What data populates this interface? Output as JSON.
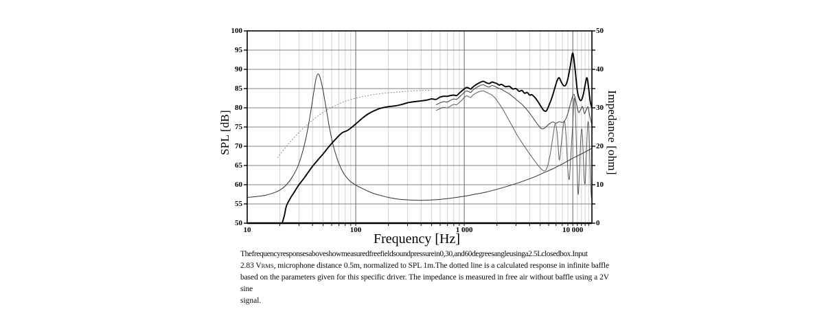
{
  "colors": {
    "background": "#ffffff",
    "axis": "#000000",
    "grid_horizontal": "#808080",
    "grid_decade": "#707070",
    "grid_minor": "#d2d2d2",
    "spl_0deg": "#000000",
    "spl_30deg": "#3a3a3a",
    "spl_60deg": "#5a5a5a",
    "calculated": "#8a8a8a",
    "impedance": "#2f2f2f"
  },
  "chart_data": {
    "type": "line",
    "x_scale": "log",
    "xlabel": "Frequency [Hz]",
    "ylabel_left": "SPL [dB]",
    "ylabel_right": "Impedance [ohm]",
    "x_range": [
      10,
      15000
    ],
    "y_left_range": [
      50,
      100
    ],
    "y_right_range": [
      0,
      50
    ],
    "grid": "on",
    "legend_position": "none",
    "x_tick_labels": [
      {
        "f": 10,
        "label": "10"
      },
      {
        "f": 100,
        "label": "100"
      },
      {
        "f": 1000,
        "label": "1 000"
      },
      {
        "f": 10000,
        "label": "10 000"
      }
    ],
    "y_left_tick_labels": [
      100,
      95,
      90,
      85,
      80,
      75,
      70,
      65,
      60,
      55,
      50
    ],
    "y_right_tick_labels": [
      50,
      40,
      30,
      20,
      10,
      0
    ],
    "series": [
      {
        "name": "calculated-infinite-baffle-response-dotted",
        "axis": "left",
        "style": "calculated",
        "points": [
          [
            19,
            67
          ],
          [
            22,
            69.3
          ],
          [
            25,
            71.2
          ],
          [
            30,
            73.6
          ],
          [
            35,
            75.4
          ],
          [
            40,
            76.8
          ],
          [
            50,
            78.8
          ],
          [
            60,
            80.1
          ],
          [
            70,
            81.0
          ],
          [
            80,
            81.7
          ],
          [
            100,
            82.5
          ],
          [
            120,
            83.0
          ],
          [
            150,
            83.5
          ],
          [
            200,
            83.9
          ],
          [
            250,
            84.1
          ],
          [
            300,
            84.3
          ],
          [
            400,
            84.5
          ],
          [
            500,
            84.6
          ]
        ]
      },
      {
        "name": "spl-30-degrees",
        "axis": "left",
        "style": "spl_30deg",
        "points": [
          [
            550,
            80.8
          ],
          [
            600,
            81.3
          ],
          [
            650,
            81.6
          ],
          [
            700,
            81.5
          ],
          [
            750,
            82.0
          ],
          [
            800,
            82.3
          ],
          [
            850,
            82.2
          ],
          [
            900,
            82.8
          ],
          [
            950,
            83.4
          ],
          [
            1000,
            84.0
          ],
          [
            1050,
            84.4
          ],
          [
            1100,
            84.2
          ],
          [
            1150,
            84.0
          ],
          [
            1200,
            84.6
          ],
          [
            1300,
            85.3
          ],
          [
            1400,
            85.8
          ],
          [
            1500,
            86.0
          ],
          [
            1600,
            85.6
          ],
          [
            1700,
            85.4
          ],
          [
            1800,
            85.8
          ],
          [
            1900,
            85.6
          ],
          [
            2000,
            85.3
          ],
          [
            2200,
            84.8
          ],
          [
            2400,
            84.2
          ],
          [
            2600,
            83.6
          ],
          [
            2800,
            82.9
          ],
          [
            3000,
            82.2
          ],
          [
            3300,
            81.2
          ],
          [
            3600,
            80.2
          ],
          [
            4000,
            78.6
          ],
          [
            4400,
            77.0
          ],
          [
            4800,
            75.5
          ],
          [
            5200,
            74.5
          ],
          [
            5600,
            74.9
          ],
          [
            6000,
            75.7
          ],
          [
            6500,
            76.3
          ],
          [
            7000,
            76.0
          ],
          [
            7500,
            76.4
          ],
          [
            8000,
            76.2
          ],
          [
            8500,
            76.8
          ],
          [
            9000,
            78.5
          ],
          [
            9500,
            81.0
          ],
          [
            10200,
            83.5
          ],
          [
            10800,
            81.0
          ],
          [
            11300,
            78.8
          ],
          [
            11800,
            79.5
          ],
          [
            12300,
            80.3
          ],
          [
            12800,
            78.5
          ],
          [
            13300,
            79.5
          ],
          [
            13800,
            80.2
          ],
          [
            14300,
            78.0
          ],
          [
            14800,
            76.2
          ],
          [
            15000,
            75.7
          ]
        ]
      },
      {
        "name": "spl-60-degrees",
        "axis": "left",
        "style": "spl_60deg",
        "points": [
          [
            550,
            79.3
          ],
          [
            600,
            79.8
          ],
          [
            650,
            80.1
          ],
          [
            700,
            80.0
          ],
          [
            750,
            80.5
          ],
          [
            800,
            80.9
          ],
          [
            850,
            80.8
          ],
          [
            900,
            81.4
          ],
          [
            950,
            82.0
          ],
          [
            1000,
            82.7
          ],
          [
            1050,
            83.1
          ],
          [
            1100,
            82.9
          ],
          [
            1150,
            82.7
          ],
          [
            1200,
            83.3
          ],
          [
            1300,
            83.9
          ],
          [
            1400,
            84.3
          ],
          [
            1500,
            84.4
          ],
          [
            1600,
            84.0
          ],
          [
            1700,
            83.7
          ],
          [
            1800,
            83.3
          ],
          [
            1900,
            82.7
          ],
          [
            2000,
            81.9
          ],
          [
            2200,
            80.2
          ],
          [
            2400,
            78.4
          ],
          [
            2600,
            76.6
          ],
          [
            2800,
            75.0
          ],
          [
            3000,
            73.4
          ],
          [
            3300,
            71.5
          ],
          [
            3600,
            69.9
          ],
          [
            4000,
            68.0
          ],
          [
            4400,
            66.4
          ],
          [
            4800,
            65.0
          ],
          [
            5200,
            63.9
          ],
          [
            5500,
            63.6
          ],
          [
            5800,
            64.5
          ],
          [
            6200,
            68.0
          ],
          [
            6600,
            73.0
          ],
          [
            6900,
            75.8
          ],
          [
            7200,
            73.0
          ],
          [
            7500,
            66.5
          ],
          [
            7800,
            70.0
          ],
          [
            8100,
            74.5
          ],
          [
            8400,
            76.5
          ],
          [
            8700,
            72.0
          ],
          [
            9000,
            64.0
          ],
          [
            9300,
            61.5
          ],
          [
            9600,
            68.0
          ],
          [
            10000,
            76.0
          ],
          [
            10300,
            82.5
          ],
          [
            10600,
            78.0
          ],
          [
            10900,
            66.0
          ],
          [
            11200,
            57.5
          ],
          [
            11500,
            63.0
          ],
          [
            11800,
            71.0
          ],
          [
            12100,
            74.5
          ],
          [
            12400,
            70.0
          ],
          [
            12700,
            62.0
          ],
          [
            13000,
            60.5
          ],
          [
            13300,
            67.0
          ],
          [
            13600,
            74.0
          ],
          [
            13900,
            76.3
          ],
          [
            14200,
            71.0
          ],
          [
            14500,
            62.0
          ],
          [
            14800,
            57.0
          ],
          [
            15000,
            56.5
          ]
        ]
      },
      {
        "name": "impedance-free-air",
        "axis": "right",
        "style": "impedance",
        "points": [
          [
            10,
            6.7
          ],
          [
            12,
            6.9
          ],
          [
            15,
            7.3
          ],
          [
            18,
            8.0
          ],
          [
            20,
            8.6
          ],
          [
            23,
            10.0
          ],
          [
            26,
            12.0
          ],
          [
            29,
            14.5
          ],
          [
            32,
            18.0
          ],
          [
            35,
            22.5
          ],
          [
            38,
            28.0
          ],
          [
            41,
            34.0
          ],
          [
            43,
            37.5
          ],
          [
            45,
            38.8
          ],
          [
            47,
            37.8
          ],
          [
            50,
            34.5
          ],
          [
            54,
            29.0
          ],
          [
            58,
            24.0
          ],
          [
            63,
            19.5
          ],
          [
            70,
            15.5
          ],
          [
            78,
            12.8
          ],
          [
            88,
            11.0
          ],
          [
            100,
            9.9
          ],
          [
            115,
            9.0
          ],
          [
            130,
            8.3
          ],
          [
            150,
            7.6
          ],
          [
            175,
            7.1
          ],
          [
            200,
            6.7
          ],
          [
            240,
            6.3
          ],
          [
            280,
            6.1
          ],
          [
            330,
            6.0
          ],
          [
            400,
            5.95
          ],
          [
            470,
            6.0
          ],
          [
            550,
            6.1
          ],
          [
            650,
            6.3
          ],
          [
            800,
            6.6
          ],
          [
            1000,
            7.0
          ],
          [
            1300,
            7.6
          ],
          [
            1600,
            8.1
          ],
          [
            2000,
            8.8
          ],
          [
            2500,
            9.6
          ],
          [
            3000,
            10.3
          ],
          [
            3700,
            11.2
          ],
          [
            4500,
            12.1
          ],
          [
            5500,
            13.2
          ],
          [
            6500,
            14.1
          ],
          [
            8000,
            15.4
          ],
          [
            10000,
            16.9
          ],
          [
            12000,
            18.0
          ],
          [
            14000,
            19.0
          ],
          [
            15000,
            19.5
          ]
        ]
      },
      {
        "name": "spl-0-degrees-closed-box",
        "axis": "left",
        "style": "spl_0deg",
        "points": [
          [
            21,
            50
          ],
          [
            22,
            52
          ],
          [
            23,
            54.5
          ],
          [
            25,
            56.5
          ],
          [
            27,
            58
          ],
          [
            30,
            60
          ],
          [
            33,
            61.5
          ],
          [
            36,
            63
          ],
          [
            40,
            64.8
          ],
          [
            45,
            66.5
          ],
          [
            50,
            68
          ],
          [
            57,
            70
          ],
          [
            65,
            71.8
          ],
          [
            75,
            73.5
          ],
          [
            85,
            74.2
          ],
          [
            100,
            75.8
          ],
          [
            115,
            77.3
          ],
          [
            130,
            78.4
          ],
          [
            150,
            79.3
          ],
          [
            170,
            79.9
          ],
          [
            200,
            80.3
          ],
          [
            230,
            80.5
          ],
          [
            260,
            80.8
          ],
          [
            300,
            81.3
          ],
          [
            350,
            81.6
          ],
          [
            400,
            81.8
          ],
          [
            450,
            82.0
          ],
          [
            500,
            82.3
          ],
          [
            550,
            82.2
          ],
          [
            600,
            82.8
          ],
          [
            650,
            83.0
          ],
          [
            700,
            83.0
          ],
          [
            750,
            83.2
          ],
          [
            800,
            83.3
          ],
          [
            850,
            83.2
          ],
          [
            900,
            83.8
          ],
          [
            950,
            84.4
          ],
          [
            1000,
            84.9
          ],
          [
            1050,
            85.3
          ],
          [
            1100,
            85.1
          ],
          [
            1150,
            84.9
          ],
          [
            1200,
            85.4
          ],
          [
            1300,
            86.1
          ],
          [
            1400,
            86.6
          ],
          [
            1500,
            86.9
          ],
          [
            1600,
            86.5
          ],
          [
            1700,
            86.3
          ],
          [
            1800,
            86.7
          ],
          [
            1900,
            86.5
          ],
          [
            2000,
            86.3
          ],
          [
            2100,
            85.9
          ],
          [
            2200,
            86.1
          ],
          [
            2400,
            85.5
          ],
          [
            2600,
            85.6
          ],
          [
            2800,
            84.9
          ],
          [
            3000,
            85.0
          ],
          [
            3200,
            84.3
          ],
          [
            3400,
            84.5
          ],
          [
            3600,
            83.8
          ],
          [
            3800,
            84.0
          ],
          [
            4000,
            83.3
          ],
          [
            4200,
            83.4
          ],
          [
            4500,
            82.6
          ],
          [
            4800,
            81.5
          ],
          [
            5100,
            80.3
          ],
          [
            5400,
            79.3
          ],
          [
            5700,
            79.2
          ],
          [
            6000,
            80.5
          ],
          [
            6400,
            82.5
          ],
          [
            6800,
            85.0
          ],
          [
            7200,
            87.2
          ],
          [
            7500,
            87.8
          ],
          [
            7800,
            86.8
          ],
          [
            8200,
            85.8
          ],
          [
            8600,
            85.9
          ],
          [
            9000,
            87.5
          ],
          [
            9500,
            91.0
          ],
          [
            10000,
            94.2
          ],
          [
            10500,
            90.0
          ],
          [
            11000,
            84.5
          ],
          [
            11500,
            82.3
          ],
          [
            12000,
            82.0
          ],
          [
            12500,
            83.5
          ],
          [
            13000,
            86.0
          ],
          [
            13500,
            87.8
          ],
          [
            14000,
            85.0
          ],
          [
            14500,
            81.5
          ],
          [
            15000,
            80.0
          ]
        ]
      }
    ]
  },
  "caption": {
    "lines": [
      [
        {
          "t": "The frequency responses above show measured free field sound pressure in 0, 30, and 60 degrees angle using a 2.5L closed box. Input"
        }
      ],
      [
        {
          "t": "2.83 V"
        },
        {
          "t": "RMS",
          "sc": true
        },
        {
          "t": ", microphone distance 0.5m, normalized to SPL 1m.The dotted line is a calculated response in infinite baffle"
        }
      ],
      [
        {
          "t": "based on the parameters given for this specific driver. The impedance is measured in free air without baffle using a 2V sine"
        }
      ],
      [
        {
          "t": "signal."
        }
      ]
    ]
  }
}
